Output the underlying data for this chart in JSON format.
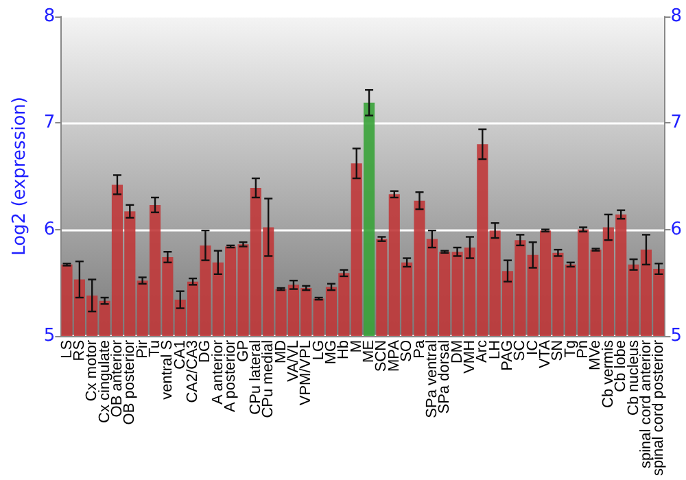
{
  "chart_data": {
    "type": "bar",
    "ylabel": "Log2 (expression)",
    "categories": [
      "LS",
      "RS",
      "Cx motor",
      "Cx cingulate",
      "OB anterior",
      "OB posterior",
      "Pir",
      "Tu",
      "ventral S",
      "CA1",
      "CA2/CA3",
      "DG",
      "A anterior",
      "A posterior",
      "GP",
      "CPu lateral",
      "CPu medial",
      "MD",
      "VA/VL",
      "VPM/VPL",
      "LG",
      "MG",
      "Hb",
      "M",
      "ME",
      "SCN",
      "MPA",
      "SO",
      "Pa",
      "SPa ventral",
      "SPa dorsal",
      "DM",
      "VMH",
      "Arc",
      "LH",
      "PAG",
      "SC",
      "IC",
      "VTA",
      "SN",
      "Tg",
      "Pn",
      "MVe",
      "Cb vermis",
      "Cb lobe",
      "Cb nucleus",
      "spinal cord anterior",
      "spinal cord posterior"
    ],
    "values": [
      5.67,
      5.53,
      5.38,
      5.33,
      6.42,
      6.17,
      5.52,
      6.23,
      5.74,
      5.34,
      5.51,
      5.85,
      5.69,
      5.84,
      5.86,
      6.39,
      6.02,
      5.44,
      5.48,
      5.45,
      5.35,
      5.46,
      5.59,
      6.62,
      7.19,
      5.91,
      6.33,
      5.69,
      6.27,
      5.91,
      5.79,
      5.79,
      5.83,
      6.8,
      5.99,
      5.61,
      5.9,
      5.76,
      5.99,
      5.78,
      5.67,
      6.0,
      5.81,
      6.02,
      6.14,
      5.67,
      5.81,
      5.63
    ],
    "errors": [
      0.01,
      0.17,
      0.15,
      0.03,
      0.09,
      0.06,
      0.03,
      0.07,
      0.05,
      0.08,
      0.03,
      0.14,
      0.11,
      0.01,
      0.02,
      0.09,
      0.27,
      0.01,
      0.04,
      0.02,
      0.01,
      0.03,
      0.03,
      0.14,
      0.12,
      0.02,
      0.03,
      0.04,
      0.08,
      0.08,
      0.01,
      0.04,
      0.1,
      0.14,
      0.07,
      0.1,
      0.05,
      0.12,
      0.01,
      0.03,
      0.02,
      0.02,
      0.01,
      0.12,
      0.04,
      0.05,
      0.14,
      0.05
    ],
    "colors": [
      "#c0383a",
      "#c0383a",
      "#c0383a",
      "#c0383a",
      "#c0383a",
      "#c0383a",
      "#c0383a",
      "#c0383a",
      "#c0383a",
      "#c0383a",
      "#c0383a",
      "#c0383a",
      "#c0383a",
      "#c0383a",
      "#c0383a",
      "#c0383a",
      "#c0383a",
      "#c0383a",
      "#c0383a",
      "#c0383a",
      "#c0383a",
      "#c0383a",
      "#c0383a",
      "#c0383a",
      "#3aa33a",
      "#c0383a",
      "#c0383a",
      "#c0383a",
      "#c0383a",
      "#c0383a",
      "#c0383a",
      "#c0383a",
      "#c0383a",
      "#c0383a",
      "#c0383a",
      "#c0383a",
      "#c0383a",
      "#c0383a",
      "#c0383a",
      "#c0383a",
      "#c0383a",
      "#c0383a",
      "#c0383a",
      "#c0383a",
      "#c0383a",
      "#c0383a",
      "#c0383a",
      "#c0383a"
    ],
    "ylim": [
      5,
      8
    ],
    "yticks": [
      5,
      6,
      7,
      8
    ],
    "y2lim": [
      5,
      8
    ],
    "y2ticks": [
      5,
      6,
      7,
      8
    ],
    "grid": "y"
  }
}
